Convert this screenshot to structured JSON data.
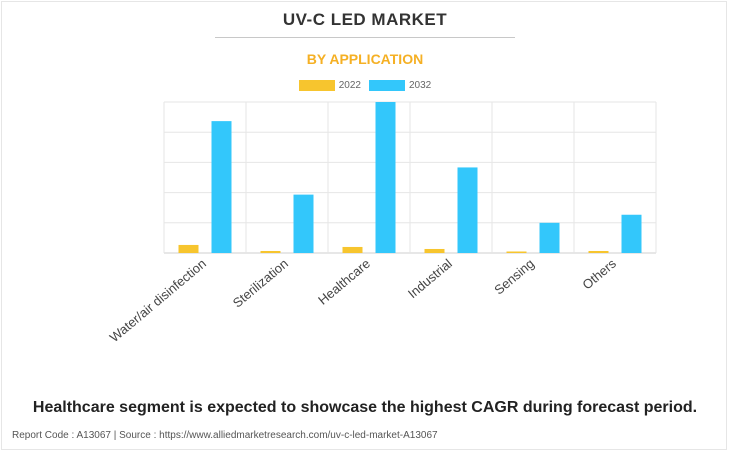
{
  "title": "UV-C LED MARKET",
  "subtitle": "BY APPLICATION",
  "colors": {
    "series_2022": "#f7c52e",
    "series_2032": "#33c7fb",
    "subtitle": "#f5b024",
    "gridline": "#e6e6e6"
  },
  "chart_data": {
    "type": "bar",
    "title": "UV-C LED MARKET",
    "subtitle": "BY APPLICATION",
    "categories": [
      "Water/air disinfection",
      "Sterilization",
      "Healthcare",
      "Industrial",
      "Sensing",
      "Others"
    ],
    "series": [
      {
        "name": "2022",
        "color": "#f7c52e",
        "values": [
          8,
          2,
          6,
          4,
          1,
          2
        ]
      },
      {
        "name": "2032",
        "color": "#33c7fb",
        "values": [
          131,
          58,
          150,
          85,
          30,
          38
        ]
      }
    ],
    "ylim": [
      0,
      150
    ],
    "grid": true,
    "legend": "top-center",
    "xlabel": "",
    "ylabel": ""
  },
  "footer": {
    "headline": "Healthcare segment is expected to showcase the highest CAGR during forecast period.",
    "meta": "Report Code : A13067  |  Source : https://www.alliedmarketresearch.com/uv-c-led-market-A13067"
  }
}
